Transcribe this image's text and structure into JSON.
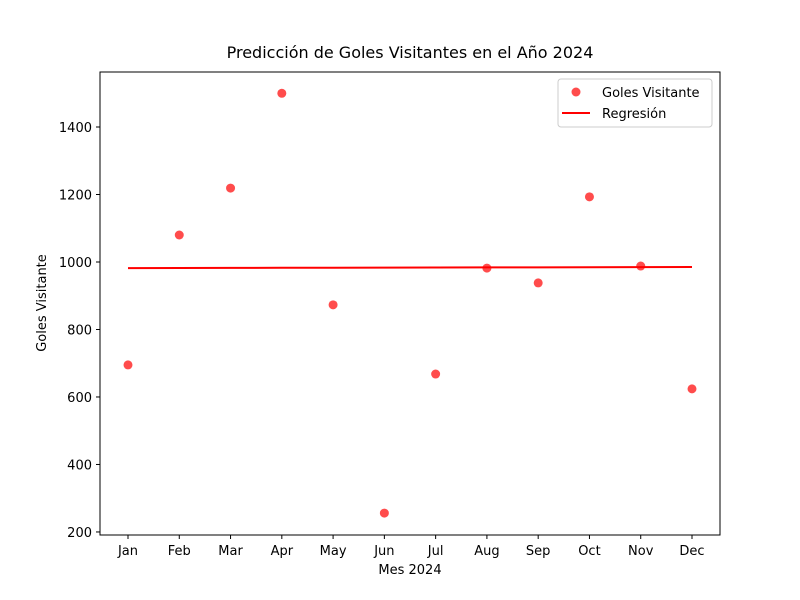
{
  "chart_data": {
    "type": "scatter",
    "title": "Predicción de Goles Visitantes en el Año 2024",
    "xlabel": "Mes 2024",
    "ylabel": "Goles Visitante",
    "categories": [
      "Jan",
      "Feb",
      "Mar",
      "Apr",
      "May",
      "Jun",
      "Jul",
      "Aug",
      "Sep",
      "Oct",
      "Nov",
      "Dec"
    ],
    "series": [
      {
        "name": "Goles Visitante",
        "color": "#ff0000",
        "kind": "scatter",
        "values": [
          695,
          1080,
          1219,
          1500,
          873,
          256,
          668,
          982,
          938,
          1193,
          988,
          624
        ]
      },
      {
        "name": "Regresión",
        "color": "#ff0000",
        "kind": "line",
        "values": [
          982,
          982.3,
          982.5,
          982.8,
          983.1,
          983.4,
          983.6,
          983.9,
          984.2,
          984.5,
          984.7,
          985
        ]
      }
    ],
    "ylim": [
      191,
      1563
    ],
    "yticks": [
      200,
      400,
      600,
      800,
      1000,
      1200,
      1400
    ],
    "legend": "upper right",
    "grid": false
  }
}
